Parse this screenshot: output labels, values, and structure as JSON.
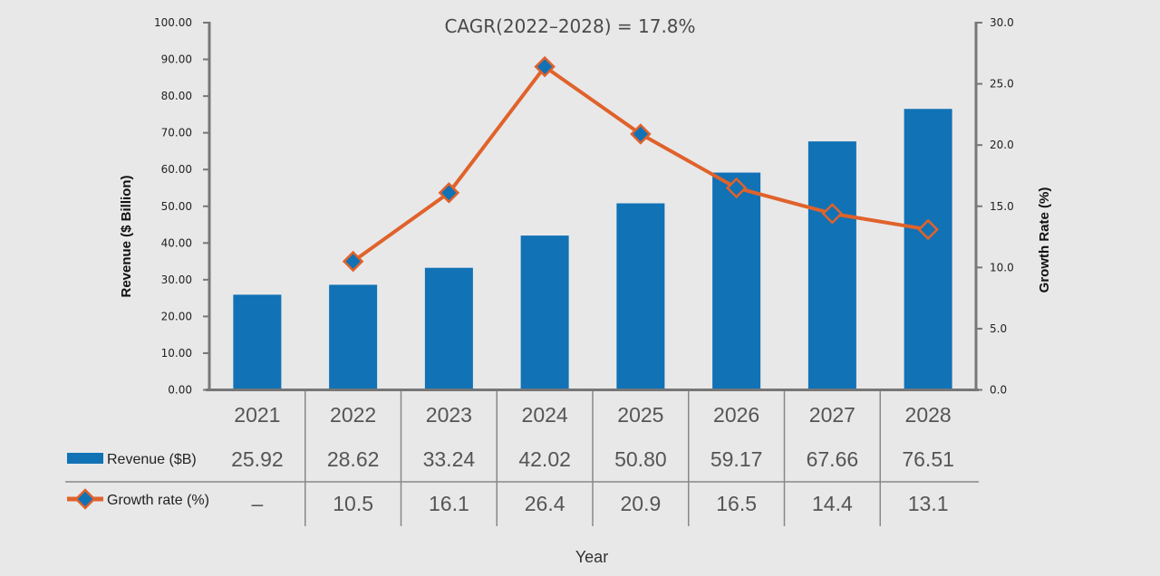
{
  "chart_data": {
    "type": "bar",
    "title": "CAGR(2022–2028) = 17.8%",
    "xlabel": "Year",
    "ylabel": "Revenue ($ Billion)",
    "y2label": "Growth Rate (%)",
    "categories": [
      "2021",
      "2022",
      "2023",
      "2024",
      "2025",
      "2026",
      "2027",
      "2028"
    ],
    "ylim": [
      0,
      100
    ],
    "y2lim": [
      0,
      30
    ],
    "yticks": [
      "0.00",
      "10.00",
      "20.00",
      "30.00",
      "40.00",
      "50.00",
      "60.00",
      "70.00",
      "80.00",
      "90.00",
      "100.00"
    ],
    "y2ticks": [
      "0.0",
      "5.0",
      "10.0",
      "15.0",
      "20.0",
      "25.0",
      "30.0"
    ],
    "grid": false,
    "series": [
      {
        "name": "Revenue ($B)",
        "kind": "bar",
        "axis": "left",
        "color": "#1172b5",
        "values": [
          25.92,
          28.62,
          33.24,
          42.02,
          50.8,
          59.17,
          67.66,
          76.51
        ],
        "labels": [
          "25.92",
          "28.62",
          "33.24",
          "42.02",
          "50.80",
          "59.17",
          "67.66",
          "76.51"
        ]
      },
      {
        "name": "Growth rate (%)",
        "kind": "line",
        "axis": "right",
        "color": "#e0622b",
        "marker_color": "#1172b5",
        "values": [
          null,
          10.5,
          16.1,
          26.4,
          20.9,
          16.5,
          14.4,
          13.1
        ],
        "labels": [
          "–",
          "10.5",
          "16.1",
          "26.4",
          "20.9",
          "16.5",
          "14.4",
          "13.1"
        ]
      }
    ],
    "legend": "bottom-table"
  }
}
